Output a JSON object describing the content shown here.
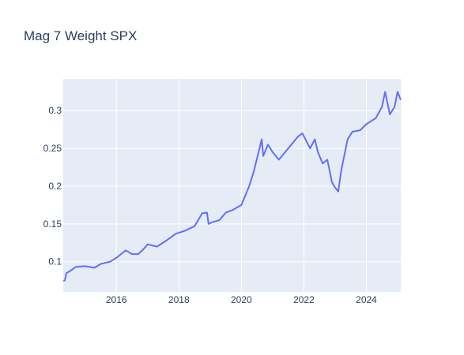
{
  "chart_data": {
    "type": "line",
    "title": "Mag 7 Weight SPX",
    "xlabel": "",
    "ylabel": "",
    "x_ticks": [
      "2016",
      "2018",
      "2020",
      "2022",
      "2024"
    ],
    "y_ticks": [
      "0.1",
      "0.15",
      "0.2",
      "0.25",
      "0.3"
    ],
    "xlim": [
      2014.3,
      2025.1
    ],
    "ylim": [
      0.06,
      0.342
    ],
    "grid": true,
    "legend": "none",
    "colors": {
      "line": "#636efa",
      "plot_bg": "#e5ecf6",
      "grid": "#ffffff",
      "text": "#2a3f5f"
    },
    "series": [
      {
        "x": [
          2014.3,
          2014.35,
          2014.4,
          2014.5,
          2014.7,
          2015.0,
          2015.3,
          2015.5,
          2015.8,
          2016.0,
          2016.3,
          2016.5,
          2016.7,
          2016.9,
          2017.0,
          2017.3,
          2017.6,
          2017.9,
          2018.2,
          2018.5,
          2018.75,
          2018.9,
          2018.95,
          2019.05,
          2019.3,
          2019.5,
          2019.7,
          2020.0,
          2020.1,
          2020.2,
          2020.25,
          2020.4,
          2020.55,
          2020.65,
          2020.7,
          2020.85,
          2021.0,
          2021.2,
          2021.4,
          2021.6,
          2021.8,
          2021.95,
          2022.05,
          2022.2,
          2022.35,
          2022.45,
          2022.6,
          2022.75,
          2022.9,
          2023.0,
          2023.1,
          2023.2,
          2023.4,
          2023.55,
          2023.8,
          2024.0,
          2024.3,
          2024.5,
          2024.6,
          2024.75,
          2024.9,
          2025.0,
          2025.1
        ],
        "y": [
          0.075,
          0.075,
          0.085,
          0.087,
          0.093,
          0.094,
          0.092,
          0.097,
          0.1,
          0.105,
          0.115,
          0.11,
          0.11,
          0.118,
          0.123,
          0.12,
          0.128,
          0.137,
          0.141,
          0.147,
          0.164,
          0.165,
          0.15,
          0.152,
          0.155,
          0.165,
          0.168,
          0.175,
          0.185,
          0.195,
          0.2,
          0.22,
          0.245,
          0.262,
          0.24,
          0.255,
          0.245,
          0.235,
          0.245,
          0.255,
          0.265,
          0.27,
          0.262,
          0.25,
          0.262,
          0.245,
          0.23,
          0.235,
          0.205,
          0.198,
          0.193,
          0.222,
          0.262,
          0.272,
          0.274,
          0.282,
          0.29,
          0.305,
          0.325,
          0.295,
          0.305,
          0.325,
          0.314
        ]
      }
    ]
  }
}
